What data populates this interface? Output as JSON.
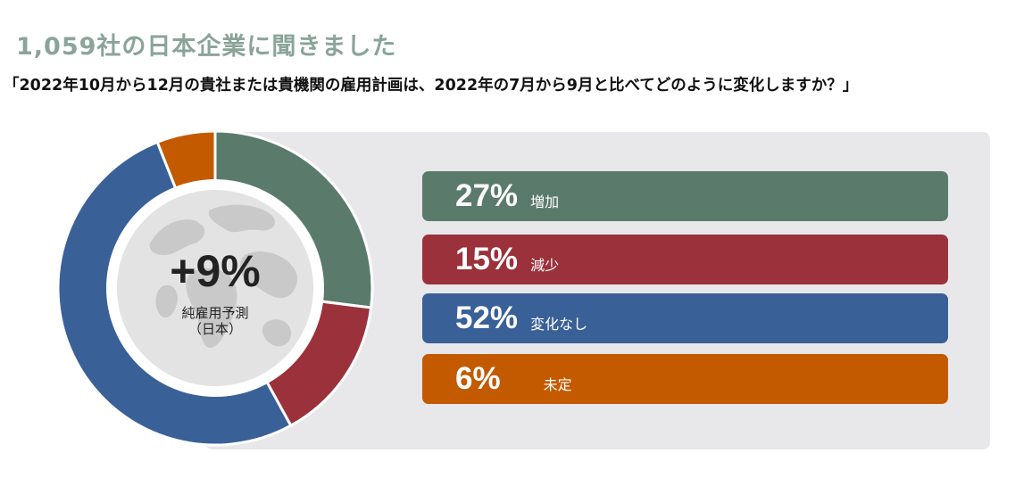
{
  "title": "1,059社の日本企業に聞きました",
  "question": "「2022年10月から12月の貴社または貴機関の雇用計画は、2022年の7月から9月と比べてどのように変化しますか？」",
  "center": {
    "value": "+9%",
    "label_line1": "純雇用予測",
    "label_line2": "（日本）"
  },
  "colors": {
    "increase": "#5a7b6c",
    "decrease": "#9b313b",
    "no_change": "#3a6098",
    "undecided": "#c45a00"
  },
  "chart_data": {
    "type": "pie",
    "categories": [
      "増加",
      "減少",
      "変化なし",
      "未定"
    ],
    "values": [
      27,
      15,
      52,
      6
    ],
    "labels": [
      "27%",
      "15%",
      "52%",
      "6%"
    ]
  }
}
